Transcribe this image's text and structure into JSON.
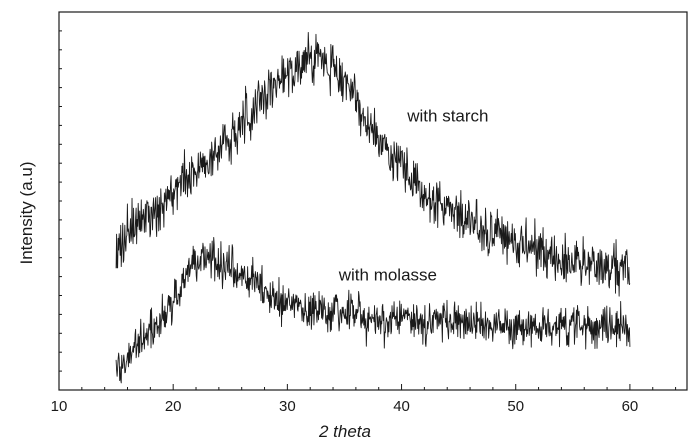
{
  "chart_data": {
    "type": "line",
    "title": "",
    "xlabel": "2 theta",
    "ylabel": "Intensity (a.u)",
    "xlim": [
      10,
      65
    ],
    "ylim": [
      0,
      100
    ],
    "x_ticks": [
      "10",
      "20",
      "30",
      "40",
      "50",
      "60"
    ],
    "y_tick_labels_shown": false,
    "grid": false,
    "legend": "none",
    "line_color": "#1a1a1a",
    "series": [
      {
        "name": "with starch",
        "x": [
          15,
          16,
          17,
          18,
          19,
          20,
          21,
          22,
          23,
          24,
          25,
          26,
          27,
          28,
          29,
          30,
          31,
          32,
          33,
          34,
          35,
          36,
          37,
          38,
          39,
          40,
          41,
          42,
          43,
          44,
          45,
          46,
          47,
          48,
          49,
          50,
          51,
          52,
          53,
          54,
          55,
          56,
          57,
          58,
          59,
          60
        ],
        "y": [
          38,
          41,
          44,
          47,
          49,
          52,
          55,
          58,
          61,
          64,
          67,
          70,
          74,
          78,
          81,
          84,
          86,
          87,
          87,
          86,
          82,
          77,
          71,
          66,
          62,
          58,
          55,
          52,
          50,
          48,
          46,
          44,
          42,
          41,
          40,
          39,
          38,
          37,
          36,
          35,
          34,
          34,
          33,
          32,
          32,
          31
        ]
      },
      {
        "name": "with molasse",
        "x": [
          15,
          16,
          17,
          18,
          19,
          20,
          21,
          22,
          23,
          24,
          25,
          26,
          27,
          28,
          29,
          30,
          31,
          32,
          33,
          34,
          35,
          36,
          37,
          38,
          39,
          40,
          41,
          42,
          43,
          44,
          45,
          46,
          47,
          48,
          49,
          50,
          51,
          52,
          53,
          54,
          55,
          56,
          57,
          58,
          59,
          60
        ],
        "y": [
          6,
          9,
          12,
          15,
          18,
          23,
          30,
          34,
          35,
          34,
          32,
          30,
          28,
          26,
          24,
          23,
          22,
          21,
          21,
          20,
          20,
          20,
          19,
          19,
          19,
          19,
          18,
          18,
          18,
          18,
          18,
          18,
          18,
          18,
          17,
          17,
          17,
          17,
          17,
          17,
          17,
          17,
          17,
          17,
          17,
          17
        ]
      }
    ],
    "annotations": [
      {
        "text": "with starch",
        "x": 40.5,
        "y": 71
      },
      {
        "text": "with molasse",
        "x": 34.5,
        "y": 29
      }
    ]
  }
}
